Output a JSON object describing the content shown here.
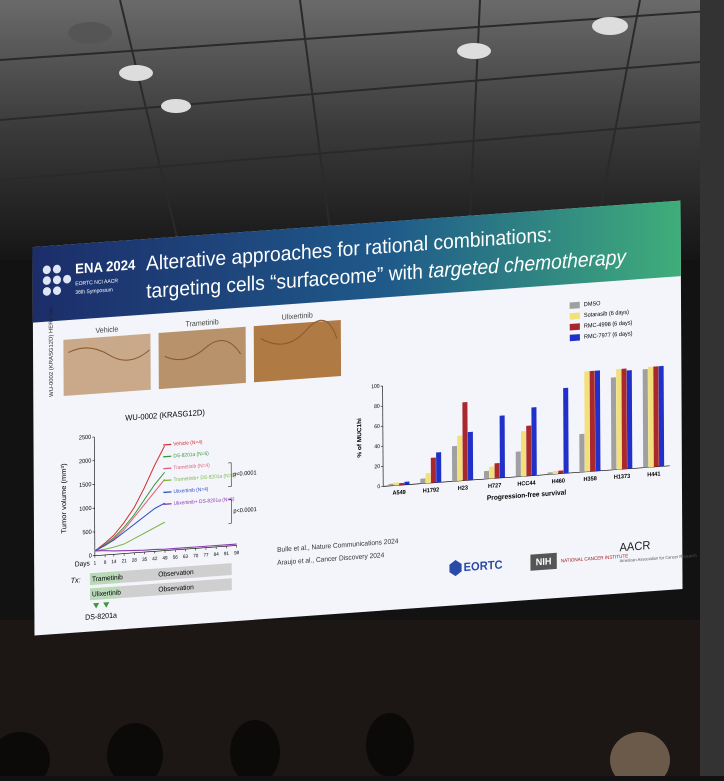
{
  "slide": {
    "logo": {
      "name": "ENA 2024",
      "partners": "EORTC NCI AACR",
      "edition": "36th Symposium"
    },
    "title_line1": "Alterative approaches for rational combinations:",
    "title_line2": "targeting cells “surfaceome” with",
    "title_line2_italic": "targeted chemotherapy",
    "panel_label": "WU-0002 (KRASG12D) HER2 low",
    "image_labels": [
      "Vehicle",
      "Trametinib",
      "Ulixertinib"
    ],
    "treatment": {
      "label": "Tx:",
      "rows": [
        [
          "Trametinib",
          "Observation"
        ],
        [
          "Ulixertinib",
          "Observation"
        ]
      ],
      "agent": "DS-8201a"
    },
    "references": [
      "Bulle et al., Nature Communications 2024",
      "Araujo et al., Cancer Discovery 2024"
    ],
    "sponsors": {
      "eortc": "EORTC",
      "nih": "NIH",
      "nci": "NATIONAL CANCER INSTITUTE",
      "aacr": "AACR",
      "aacr_full": "American Association for Cancer Research"
    }
  },
  "chart_data": [
    {
      "type": "line",
      "title": "WU-0002 (KRASG12D)",
      "y_label": "Tumor volume (mm³)",
      "x_label": "Days",
      "x": [
        1,
        8,
        14,
        21,
        28,
        35,
        42,
        49,
        56,
        63,
        70,
        77,
        84,
        91,
        98
      ],
      "xlim": [
        1,
        98
      ],
      "xticks": [
        1,
        8,
        14,
        21,
        28,
        35,
        42,
        49,
        56,
        63,
        70,
        77,
        84,
        91,
        98
      ],
      "ylim": [
        0,
        2500
      ],
      "yticks": [
        0,
        500,
        1000,
        1500,
        2000,
        2500
      ],
      "annotations": [
        "p<0.0001",
        "p<0.0001"
      ],
      "series": [
        {
          "name": "Vehicle (N=4)",
          "color": "#d0312d",
          "values": [
            100,
            250,
            400,
            650,
            950,
            1350,
            1800,
            2200,
            null,
            null,
            null,
            null,
            null,
            null,
            null
          ]
        },
        {
          "name": "DS-8201a (N=6)",
          "color": "#3a9a3a",
          "values": [
            100,
            220,
            350,
            550,
            800,
            1100,
            1400,
            1650,
            null,
            null,
            null,
            null,
            null,
            null,
            null
          ]
        },
        {
          "name": "Trametinib (N=4)",
          "color": "#e0607a",
          "values": [
            100,
            200,
            320,
            500,
            750,
            1000,
            1250,
            1500,
            null,
            null,
            null,
            null,
            null,
            null,
            null
          ]
        },
        {
          "name": "Trametinib+ DS-8201a (N=6)",
          "color": "#7ab648",
          "values": [
            100,
            120,
            150,
            200,
            300,
            400,
            500,
            600,
            null,
            null,
            null,
            null,
            null,
            null,
            null
          ]
        },
        {
          "name": "Ulixertinib (N=4)",
          "color": "#3050c0",
          "values": [
            100,
            200,
            300,
            450,
            600,
            750,
            900,
            1000,
            null,
            null,
            null,
            null,
            null,
            null,
            null
          ]
        },
        {
          "name": "Ulixertinib+ DS-8201a (N=6)",
          "color": "#8a3ab0",
          "values": [
            100,
            90,
            70,
            60,
            50,
            40,
            40,
            30,
            30,
            30,
            30,
            30,
            30,
            30,
            30
          ]
        }
      ]
    },
    {
      "type": "bar",
      "y_label": "% of MUC1hi",
      "x_label": "Progression-free survival",
      "categories": [
        "A549",
        "H1792",
        "H23",
        "H727",
        "HCC44",
        "H460",
        "H358",
        "H1373",
        "H441"
      ],
      "ylim": [
        0,
        100
      ],
      "yticks": [
        0,
        20,
        40,
        60,
        80,
        100
      ],
      "series": [
        {
          "name": "DMSO",
          "color": "#a0a0a0",
          "values": [
            2,
            5,
            35,
            8,
            25,
            2,
            38,
            92,
            98
          ]
        },
        {
          "name": "Sotarasib (6 days)",
          "color": "#f2e07a",
          "values": [
            3,
            10,
            45,
            12,
            45,
            3,
            100,
            100,
            100
          ]
        },
        {
          "name": "RMC-4998 (6 days)",
          "color": "#a8282e",
          "values": [
            2,
            25,
            78,
            15,
            50,
            3,
            100,
            100,
            100
          ]
        },
        {
          "name": "RMC-7977 (6 days)",
          "color": "#2030c8",
          "values": [
            3,
            30,
            48,
            62,
            68,
            85,
            100,
            98,
            100
          ]
        }
      ]
    }
  ]
}
